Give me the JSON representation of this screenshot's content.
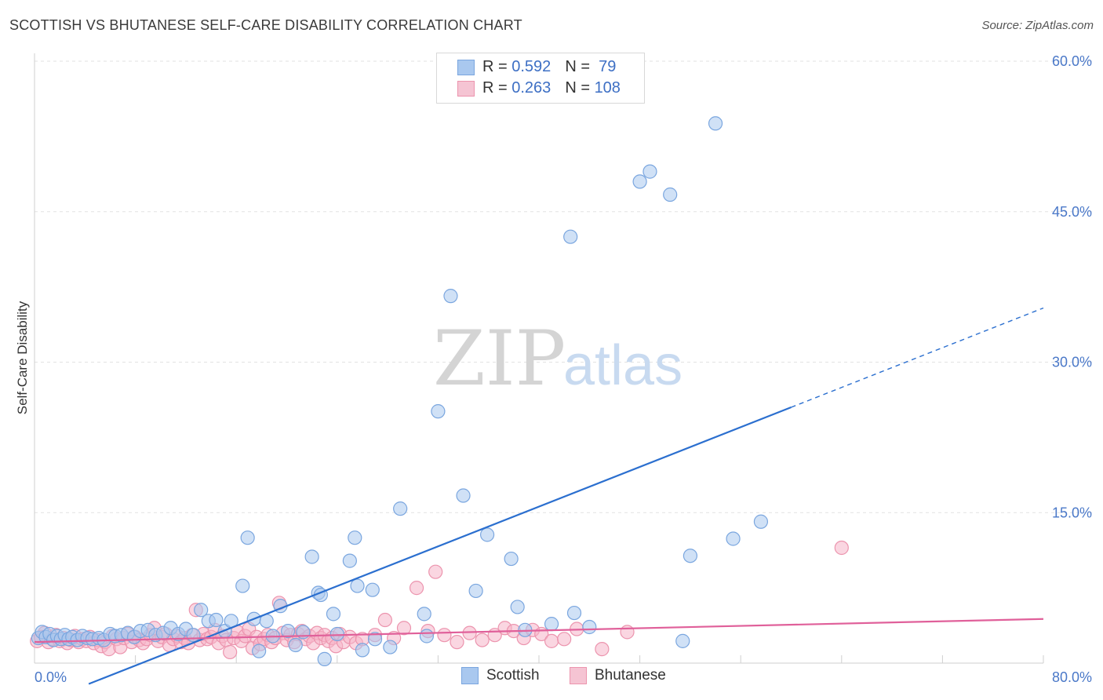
{
  "title": "SCOTTISH VS BHUTANESE SELF-CARE DISABILITY CORRELATION CHART",
  "source": "Source: ZipAtlas.com",
  "watermark": {
    "zip": "ZIP",
    "atlas": "atlas"
  },
  "legend": {
    "rows": [
      {
        "r_label": "R = ",
        "r_value": "0.592",
        "n_label": "N = ",
        "n_value": " 79"
      },
      {
        "r_label": "R = ",
        "r_value": "0.263",
        "n_label": "N = ",
        "n_value": "108"
      }
    ]
  },
  "bottom_legend": [
    "Scottish",
    "Bhutanese"
  ],
  "colors": {
    "scottish_fill": "#a9c8ef",
    "scottish_stroke": "#7aa6df",
    "scottish_line": "#2b6fcf",
    "bhutanese_fill": "#f5b5c8",
    "bhutanese_stroke": "#ec94ae",
    "bhutanese_line": "#e0609a",
    "grid": "#e2e2e2",
    "tick_label": "#4a78c8"
  },
  "chart_data": {
    "type": "scatter",
    "title": "SCOTTISH VS BHUTANESE SELF-CARE DISABILITY CORRELATION CHART",
    "xlabel": "",
    "ylabel": "Self-Care Disability",
    "xlim": [
      0,
      80
    ],
    "ylim": [
      0,
      60
    ],
    "x_tick_labels": [
      "0.0%",
      "80.0%"
    ],
    "y_ticks": [
      15,
      30,
      45,
      60
    ],
    "y_tick_labels": [
      "15.0%",
      "30.0%",
      "45.0%",
      "60.0%"
    ],
    "grid": "horizontal dashed",
    "legend_placement": "top-center",
    "series": [
      {
        "name": "Scottish",
        "R": 0.592,
        "N": 79,
        "trend": {
          "x0": 0,
          "y0": -4.2,
          "x1": 80,
          "y1": 35.4,
          "solid_until_x": 60
        },
        "points": [
          [
            0.3,
            2.5
          ],
          [
            0.6,
            3.1
          ],
          [
            0.9,
            2.6
          ],
          [
            1.2,
            2.9
          ],
          [
            1.5,
            2.3
          ],
          [
            1.8,
            2.7
          ],
          [
            2.1,
            2.4
          ],
          [
            2.4,
            2.8
          ],
          [
            2.7,
            2.4
          ],
          [
            3.0,
            2.6
          ],
          [
            3.4,
            2.3
          ],
          [
            3.8,
            2.7
          ],
          [
            4.2,
            2.5
          ],
          [
            4.6,
            2.4
          ],
          [
            5.1,
            2.5
          ],
          [
            5.5,
            2.3
          ],
          [
            6.0,
            2.9
          ],
          [
            6.4,
            2.7
          ],
          [
            6.9,
            2.8
          ],
          [
            7.4,
            3.0
          ],
          [
            7.9,
            2.6
          ],
          [
            8.4,
            3.2
          ],
          [
            9.0,
            3.3
          ],
          [
            9.6,
            2.8
          ],
          [
            10.2,
            3.0
          ],
          [
            10.8,
            3.5
          ],
          [
            11.4,
            2.9
          ],
          [
            12.0,
            3.4
          ],
          [
            12.6,
            2.8
          ],
          [
            13.2,
            5.3
          ],
          [
            13.8,
            4.2
          ],
          [
            14.4,
            4.3
          ],
          [
            15.1,
            3.2
          ],
          [
            15.6,
            4.2
          ],
          [
            16.5,
            7.7
          ],
          [
            16.9,
            12.5
          ],
          [
            17.4,
            4.4
          ],
          [
            17.8,
            1.2
          ],
          [
            18.4,
            4.2
          ],
          [
            18.9,
            2.7
          ],
          [
            19.5,
            5.7
          ],
          [
            20.1,
            3.2
          ],
          [
            20.7,
            1.8
          ],
          [
            21.3,
            3.1
          ],
          [
            22.0,
            10.6
          ],
          [
            22.5,
            7.0
          ],
          [
            22.7,
            6.8
          ],
          [
            23.0,
            0.4
          ],
          [
            23.7,
            4.9
          ],
          [
            24.0,
            2.9
          ],
          [
            25.0,
            10.2
          ],
          [
            25.4,
            12.5
          ],
          [
            25.6,
            7.7
          ],
          [
            26.0,
            1.3
          ],
          [
            26.8,
            7.3
          ],
          [
            27.0,
            2.4
          ],
          [
            28.2,
            1.6
          ],
          [
            29.0,
            15.4
          ],
          [
            30.9,
            4.9
          ],
          [
            31.1,
            2.7
          ],
          [
            32.0,
            25.1
          ],
          [
            33.0,
            36.6
          ],
          [
            34.0,
            16.7
          ],
          [
            35.0,
            7.2
          ],
          [
            35.9,
            12.8
          ],
          [
            37.8,
            10.4
          ],
          [
            38.3,
            5.6
          ],
          [
            38.9,
            3.3
          ],
          [
            41.0,
            3.9
          ],
          [
            42.5,
            42.5
          ],
          [
            42.8,
            5.0
          ],
          [
            44.0,
            3.6
          ],
          [
            48.0,
            48.0
          ],
          [
            48.8,
            49.0
          ],
          [
            50.4,
            46.7
          ],
          [
            51.4,
            2.2
          ],
          [
            52.0,
            10.7
          ],
          [
            54.0,
            53.8
          ],
          [
            55.4,
            12.4
          ],
          [
            57.6,
            14.1
          ]
        ]
      },
      {
        "name": "Bhutanese",
        "R": 0.263,
        "N": 108,
        "trend": {
          "x0": 0,
          "y0": 2.1,
          "x1": 80,
          "y1": 4.4
        },
        "points": [
          [
            0.2,
            2.2
          ],
          [
            0.5,
            2.6
          ],
          [
            0.8,
            3.0
          ],
          [
            1.1,
            2.1
          ],
          [
            1.4,
            2.4
          ],
          [
            1.7,
            2.8
          ],
          [
            2.0,
            2.2
          ],
          [
            2.3,
            2.5
          ],
          [
            2.6,
            2.0
          ],
          [
            2.9,
            2.3
          ],
          [
            3.2,
            2.7
          ],
          [
            3.5,
            2.1
          ],
          [
            3.8,
            2.4
          ],
          [
            4.1,
            2.2
          ],
          [
            4.4,
            2.6
          ],
          [
            4.7,
            2.0
          ],
          [
            5.0,
            2.3
          ],
          [
            5.3,
            1.7
          ],
          [
            5.6,
            2.1
          ],
          [
            5.9,
            1.4
          ],
          [
            6.2,
            2.7
          ],
          [
            6.5,
            2.4
          ],
          [
            6.8,
            1.6
          ],
          [
            7.1,
            2.5
          ],
          [
            7.4,
            2.9
          ],
          [
            7.7,
            2.1
          ],
          [
            8.0,
            2.6
          ],
          [
            8.3,
            2.3
          ],
          [
            8.6,
            2.0
          ],
          [
            8.9,
            2.4
          ],
          [
            9.2,
            2.8
          ],
          [
            9.5,
            3.5
          ],
          [
            9.8,
            2.2
          ],
          [
            10.1,
            2.6
          ],
          [
            10.4,
            2.9
          ],
          [
            10.7,
            1.8
          ],
          [
            11.0,
            2.4
          ],
          [
            11.3,
            2.7
          ],
          [
            11.6,
            2.1
          ],
          [
            11.9,
            2.5
          ],
          [
            12.2,
            2.0
          ],
          [
            12.5,
            2.8
          ],
          [
            12.8,
            5.3
          ],
          [
            13.1,
            2.3
          ],
          [
            13.4,
            2.9
          ],
          [
            13.7,
            2.4
          ],
          [
            14.0,
            2.6
          ],
          [
            14.3,
            3.3
          ],
          [
            14.6,
            2.0
          ],
          [
            14.9,
            2.7
          ],
          [
            15.2,
            2.3
          ],
          [
            15.5,
            1.1
          ],
          [
            15.8,
            2.5
          ],
          [
            16.1,
            3.1
          ],
          [
            16.4,
            2.2
          ],
          [
            16.7,
            2.7
          ],
          [
            17.0,
            3.4
          ],
          [
            17.3,
            1.5
          ],
          [
            17.6,
            2.6
          ],
          [
            17.9,
            1.9
          ],
          [
            18.2,
            2.4
          ],
          [
            18.5,
            2.8
          ],
          [
            18.8,
            2.1
          ],
          [
            19.1,
            2.5
          ],
          [
            19.4,
            6.0
          ],
          [
            19.7,
            3.0
          ],
          [
            20.0,
            2.3
          ],
          [
            20.3,
            2.8
          ],
          [
            20.6,
            2.1
          ],
          [
            20.9,
            2.9
          ],
          [
            21.2,
            3.2
          ],
          [
            21.5,
            2.4
          ],
          [
            21.8,
            2.7
          ],
          [
            22.1,
            2.0
          ],
          [
            22.4,
            3.0
          ],
          [
            22.7,
            2.5
          ],
          [
            23.0,
            2.8
          ],
          [
            23.3,
            2.2
          ],
          [
            23.6,
            2.5
          ],
          [
            23.9,
            1.7
          ],
          [
            24.2,
            2.9
          ],
          [
            24.5,
            2.1
          ],
          [
            25.0,
            2.6
          ],
          [
            25.5,
            2.0
          ],
          [
            26.0,
            2.4
          ],
          [
            27.0,
            2.8
          ],
          [
            27.8,
            4.3
          ],
          [
            28.5,
            2.5
          ],
          [
            29.3,
            3.5
          ],
          [
            30.3,
            7.5
          ],
          [
            31.2,
            3.2
          ],
          [
            31.8,
            9.1
          ],
          [
            32.5,
            2.8
          ],
          [
            33.5,
            2.1
          ],
          [
            34.5,
            3.0
          ],
          [
            35.5,
            2.3
          ],
          [
            36.5,
            2.8
          ],
          [
            37.3,
            3.5
          ],
          [
            38.0,
            3.2
          ],
          [
            38.8,
            2.5
          ],
          [
            39.5,
            3.3
          ],
          [
            40.2,
            2.9
          ],
          [
            41.0,
            2.2
          ],
          [
            42.0,
            2.4
          ],
          [
            43.0,
            3.4
          ],
          [
            45.0,
            1.4
          ],
          [
            47.0,
            3.1
          ],
          [
            64.0,
            11.5
          ]
        ]
      }
    ]
  }
}
